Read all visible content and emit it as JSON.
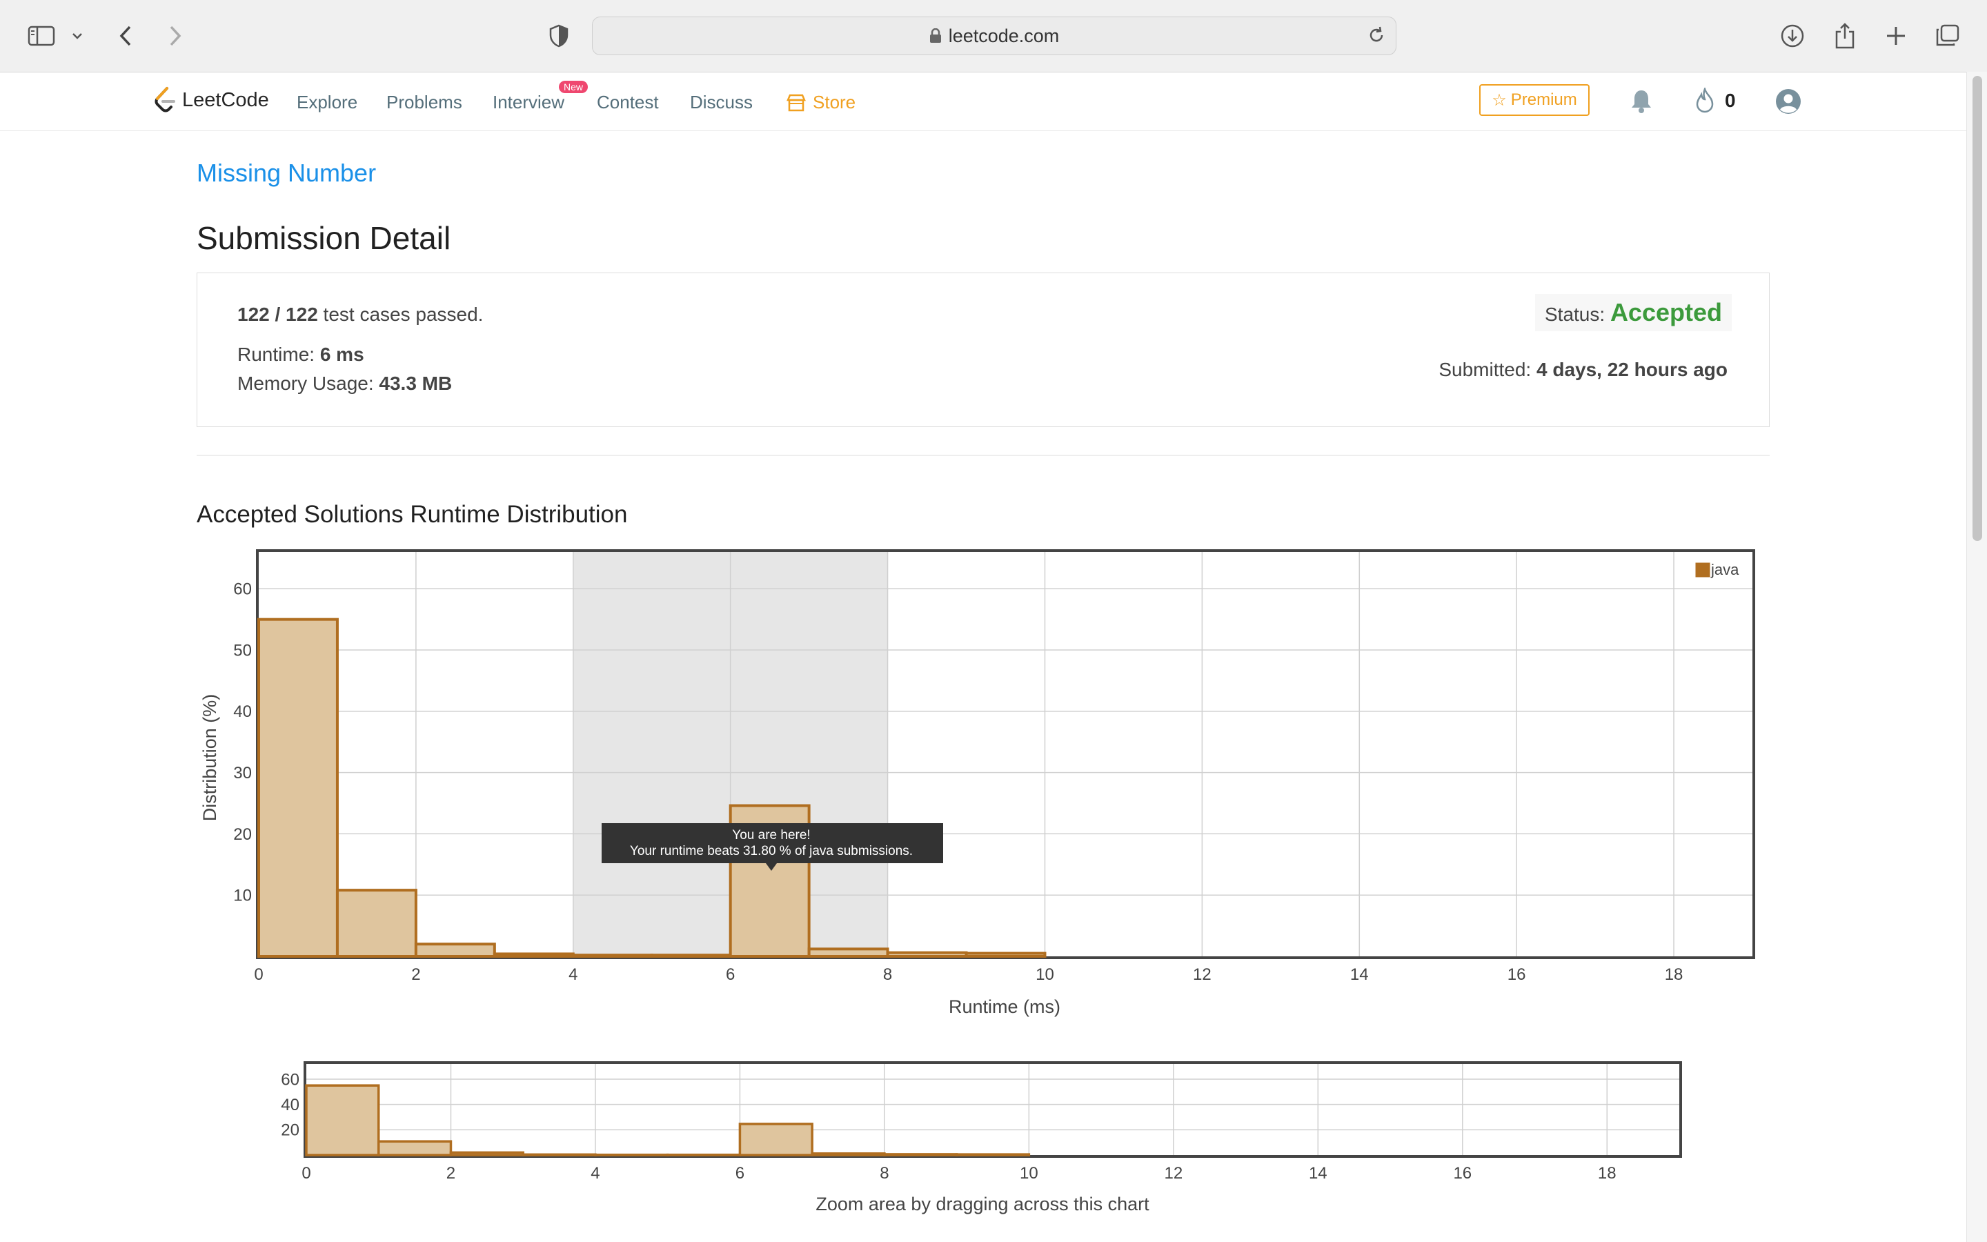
{
  "browser": {
    "url": "leetcode.com"
  },
  "nav": {
    "logo_text": "LeetCode",
    "links": [
      "Explore",
      "Problems",
      "Interview",
      "Contest",
      "Discuss"
    ],
    "new_badge": "New",
    "store": "Store",
    "premium": "Premium",
    "streak": "0"
  },
  "problem_link": "Missing Number",
  "page_title": "Submission Detail",
  "detail": {
    "passed": "122 / 122",
    "passed_suffix": " test cases passed.",
    "runtime_label": "Runtime: ",
    "runtime_value": "6 ms",
    "memory_label": "Memory Usage: ",
    "memory_value": "43.3 MB",
    "status_label": "Status: ",
    "status_value": "Accepted",
    "submitted_label": "Submitted: ",
    "submitted_value": "4 days, 22 hours ago"
  },
  "section_title": "Accepted Solutions Runtime Distribution",
  "chart_data": [
    {
      "type": "bar",
      "title": "",
      "xlabel": "Runtime (ms)",
      "ylabel": "Distribution (%)",
      "xlim": [
        0,
        19
      ],
      "ylim": [
        0,
        66
      ],
      "xticks": [
        0,
        2,
        4,
        6,
        8,
        10,
        12,
        14,
        16,
        18
      ],
      "yticks": [
        10,
        20,
        30,
        40,
        50,
        60
      ],
      "grid": true,
      "legend": "top-right",
      "series": [
        {
          "name": "java",
          "bins": [
            0,
            1,
            2,
            3,
            4,
            5,
            6,
            7,
            8,
            9
          ],
          "values": [
            55,
            10.8,
            2.0,
            0.4,
            0.2,
            0.2,
            24.6,
            1.2,
            0.6,
            0.5
          ]
        }
      ],
      "highlight_range": [
        4,
        8
      ],
      "tooltip": [
        "You are here!",
        "Your runtime beats 31.80 % of java submissions."
      ]
    },
    {
      "type": "bar",
      "title": "",
      "xlabel": "Zoom area by dragging across this chart",
      "xlim": [
        0,
        19
      ],
      "ylim": [
        0,
        72
      ],
      "xticks": [
        0,
        2,
        4,
        6,
        8,
        10,
        12,
        14,
        16,
        18
      ],
      "yticks": [
        20,
        40,
        60
      ],
      "grid": true,
      "series": [
        {
          "bins": [
            0,
            1,
            2,
            3,
            4,
            5,
            6,
            7,
            8,
            9
          ],
          "values": [
            55,
            10.8,
            2.0,
            0.4,
            0.2,
            0.2,
            24.6,
            1.2,
            0.6,
            0.5
          ]
        }
      ]
    }
  ],
  "colors": {
    "bar_fill": "#dfc59e",
    "bar_stroke": "#b06e20",
    "accent_blue": "#1a90e8",
    "accepted_green": "#3c9a3c",
    "store_orange": "#f0a020"
  }
}
